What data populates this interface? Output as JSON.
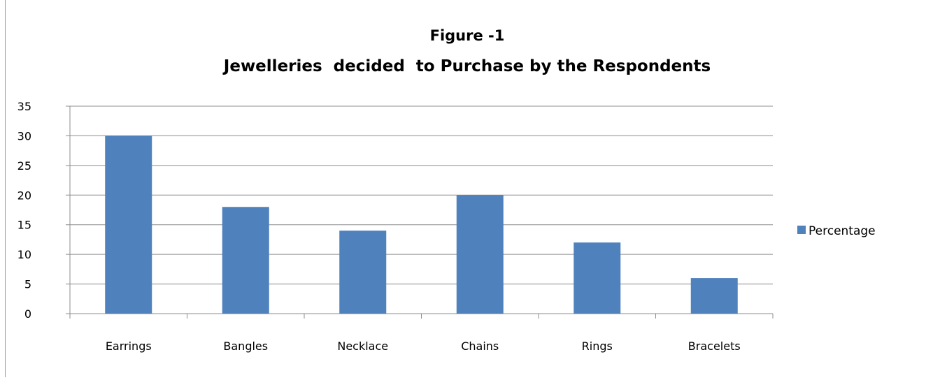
{
  "chart_data": {
    "type": "bar",
    "title_line1": "Figure -1",
    "title_line2": "Jewelleries  decided  to Purchase by the Respondents",
    "categories": [
      "Earrings",
      "Bangles",
      "Necklace",
      "Chains",
      "Rings",
      "Bracelets"
    ],
    "series": [
      {
        "name": "Percentage",
        "values": [
          30,
          18,
          14,
          20,
          12,
          6
        ]
      }
    ],
    "ylim": [
      0,
      35
    ],
    "yticks": [
      0,
      5,
      10,
      15,
      20,
      25,
      30,
      35
    ],
    "grid": true,
    "legend_position": "right",
    "colors": {
      "bar": "#4f81bd",
      "grid": "#8c8c8c",
      "axis": "#8c8c8c"
    }
  }
}
